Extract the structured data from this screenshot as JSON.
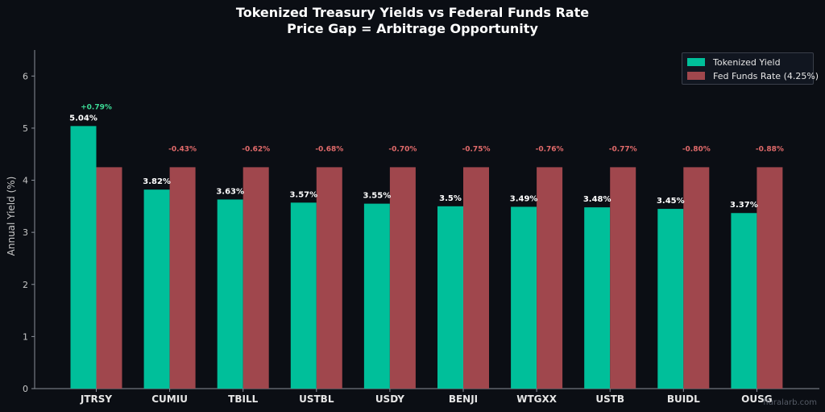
{
  "chart_data": {
    "type": "bar",
    "title": "Tokenized Treasury Yields vs Federal Funds Rate",
    "subtitle": "Price Gap = Arbitrage Opportunity",
    "xlabel": "",
    "ylabel": "Annual Yield (%)",
    "ylim": [
      0,
      6.5
    ],
    "yticks": [
      0,
      1,
      2,
      3,
      4,
      5,
      6
    ],
    "grid": false,
    "legend_position": "top-right",
    "categories": [
      "JTRSY",
      "CUMIU",
      "TBILL",
      "USTBL",
      "USDY",
      "BENJI",
      "WTGXX",
      "USTB",
      "BUIDL",
      "OUSG"
    ],
    "series": [
      {
        "name": "Tokenized Yield",
        "color": "#00bf9a",
        "values": [
          5.04,
          3.82,
          3.63,
          3.57,
          3.55,
          3.5,
          3.49,
          3.48,
          3.45,
          3.37
        ],
        "labels": [
          "5.04%",
          "3.82%",
          "3.63%",
          "3.57%",
          "3.55%",
          "3.5%",
          "3.49%",
          "3.48%",
          "3.45%",
          "3.37%"
        ]
      },
      {
        "name": "Fed Funds Rate (4.25%)",
        "color": "#a0474d",
        "values": [
          4.25,
          4.25,
          4.25,
          4.25,
          4.25,
          4.25,
          4.25,
          4.25,
          4.25,
          4.25
        ]
      }
    ],
    "spread_labels": [
      "+0.79%",
      "-0.43%",
      "-0.62%",
      "-0.68%",
      "-0.70%",
      "-0.75%",
      "-0.76%",
      "-0.77%",
      "-0.80%",
      "-0.88%"
    ],
    "spread_colors": {
      "positive": "#3ddc97",
      "negative": "#e26b6b"
    }
  },
  "watermark": "fluralarb.com"
}
